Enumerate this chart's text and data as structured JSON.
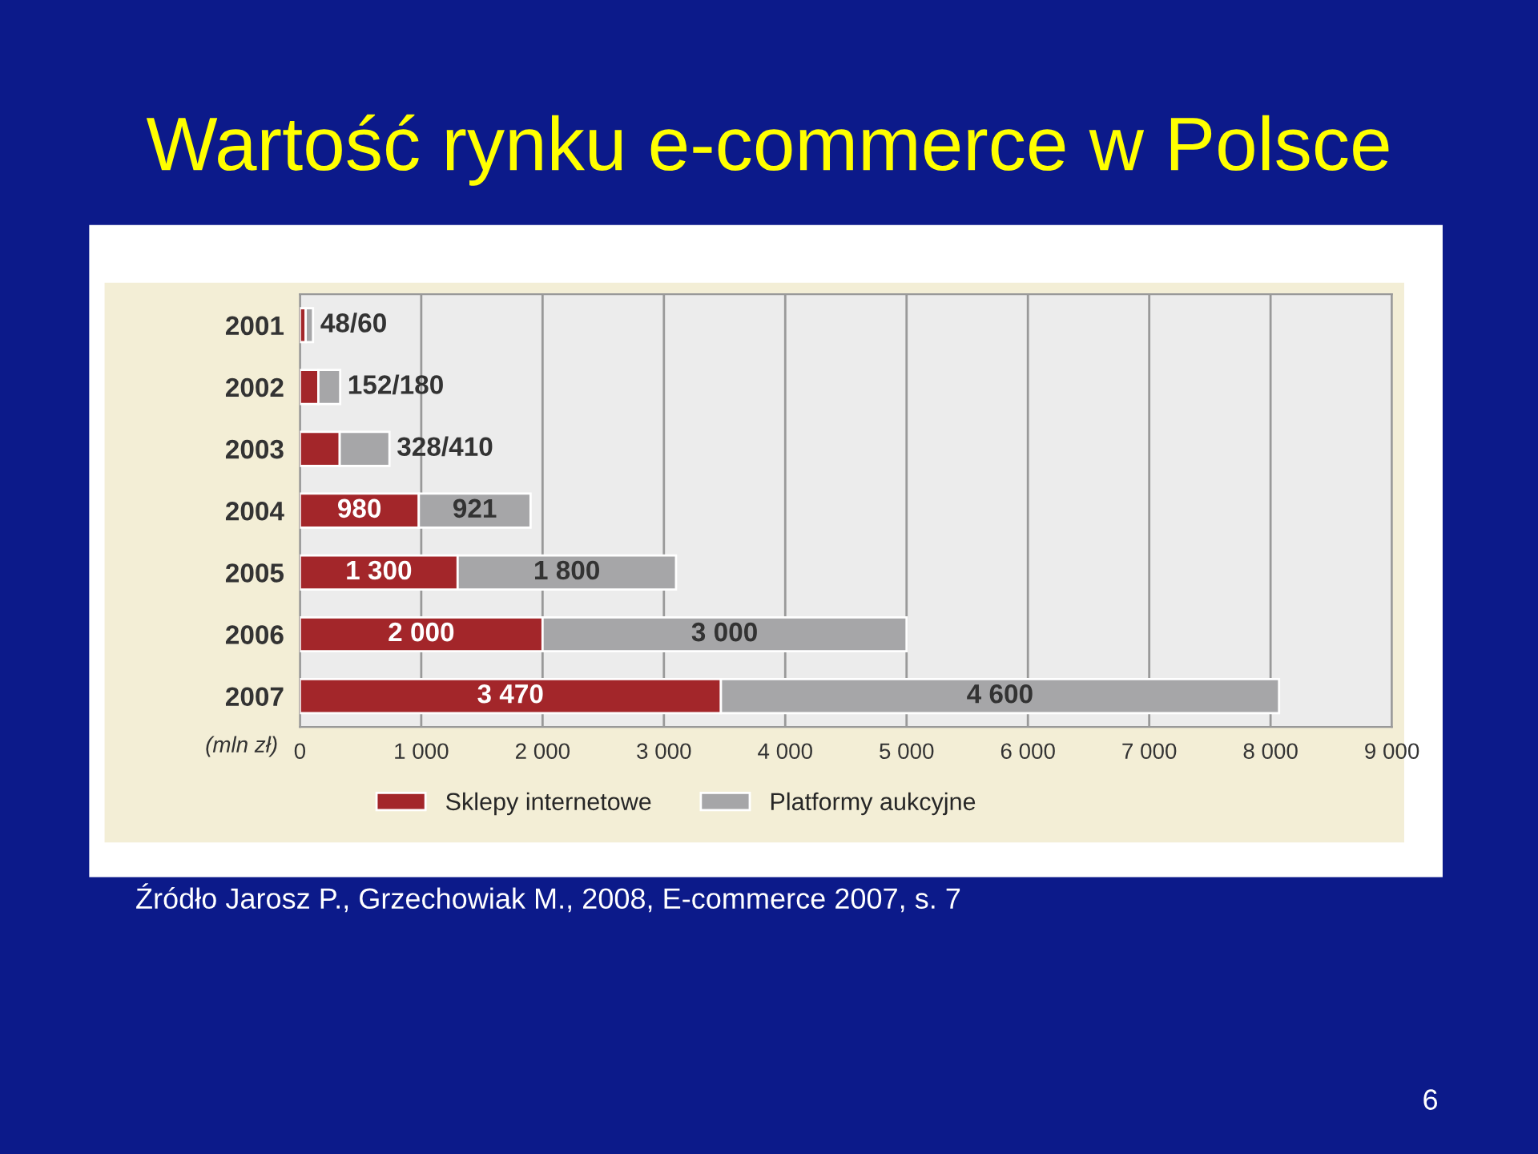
{
  "chart_data": {
    "type": "bar",
    "orientation": "horizontal",
    "stacked": true,
    "title": "Wartość rynku e-commerce w Polsce",
    "xlabel": "(mln zł)",
    "categories": [
      "2001",
      "2002",
      "2003",
      "2004",
      "2005",
      "2006",
      "2007"
    ],
    "series": [
      {
        "name": "Sklepy internetowe",
        "color": "#a3262a",
        "values": [
          48,
          152,
          328,
          980,
          1300,
          2000,
          3470
        ],
        "value_labels": [
          null,
          null,
          null,
          "980",
          "1 300",
          "2 000",
          "3 470"
        ]
      },
      {
        "name": "Platformy aukcyjne",
        "color": "#a6a6a8",
        "values": [
          60,
          180,
          410,
          921,
          1800,
          3000,
          4600
        ],
        "value_labels": [
          "48/60",
          "152/180",
          "328/410",
          "921",
          "1 800",
          "3 000",
          "4 600"
        ]
      }
    ],
    "xlim": [
      0,
      9000
    ],
    "xticks": [
      0,
      {
        "value": 1000,
        "label": "1 000"
      },
      {
        "value": 2000,
        "label": "2 000"
      },
      {
        "value": 3000,
        "label": "3 000"
      },
      {
        "value": 4000,
        "label": "4 000"
      },
      {
        "value": 5000,
        "label": "5 000"
      },
      {
        "value": 6000,
        "label": "6 000"
      },
      {
        "value": 7000,
        "label": "7 000"
      },
      {
        "value": 8000,
        "label": "8 000"
      },
      {
        "value": 9000,
        "label": "9 000"
      }
    ],
    "grid": "x",
    "legend": "bottom",
    "annotations": [
      "Źródło Jarosz P., Grzechowiak M., 2008, E-commerce 2007, s. 7",
      "6"
    ]
  }
}
